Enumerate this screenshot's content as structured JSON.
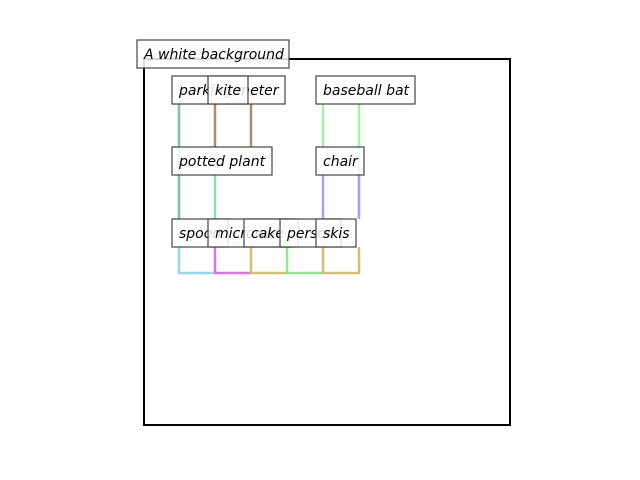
{
  "diagram": {
    "background_label": "A white background",
    "labels": {
      "parking_meter": "parking meter",
      "kite": "kite",
      "baseball_bat": "baseball bat",
      "potted_plant": "potted plant",
      "chair": "chair",
      "spoon": "spoon",
      "microwave": "microwave",
      "cake": "cake",
      "person": "person",
      "skis": "skis"
    },
    "colors": {
      "frame": "#000000",
      "line_teal": "#7fbfa3",
      "line_brown": "#b08a70",
      "line_lightgreen": "#a8f0a8",
      "line_mint": "#8fe0b0",
      "line_lavender": "#a8a0e8",
      "line_skyblue": "#90d8f0",
      "line_magenta": "#e070e8",
      "line_olive": "#d0c070",
      "line_green": "#90e890"
    }
  }
}
